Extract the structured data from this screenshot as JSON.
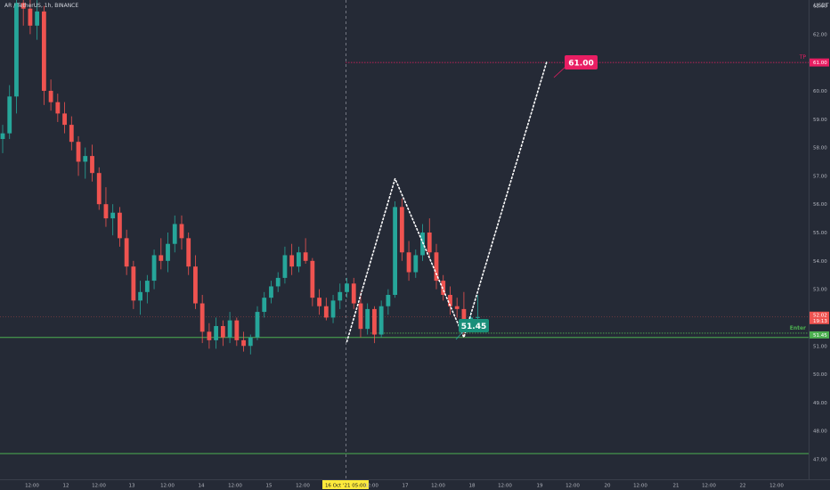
{
  "header": {
    "title": "AR / TetherUS, 1h, BINANCE",
    "currency": "USDT"
  },
  "chart_data": {
    "type": "candlestick",
    "title": "AR / TetherUS, 1h, BINANCE",
    "ylim": [
      46.6,
      63.6
    ],
    "y_ticks": [
      "47.00",
      "48.00",
      "49.00",
      "50.00",
      "51.00",
      "52.00",
      "53.00",
      "54.00",
      "55.00",
      "56.00",
      "57.00",
      "58.00",
      "59.00",
      "60.00",
      "61.00",
      "62.00",
      "63.00"
    ],
    "x_ticks": [
      "12:00",
      "12",
      "12:00",
      "13",
      "12:00",
      "14",
      "12:00",
      "15",
      "12:00",
      "16 Oct '21 05:00",
      "12:00",
      "17",
      "12:00",
      "18",
      "12:00",
      "19",
      "12:00",
      "20",
      "12:00",
      "21",
      "12:00",
      "22",
      "12:00"
    ],
    "colors": {
      "up": "#26a69a",
      "down": "#ef5350",
      "projection": "#ffffff",
      "tp": "#e91e63",
      "enter": "#4caf50",
      "support": "#4caf50"
    },
    "candles": [
      [
        58.3,
        58.8,
        57.8,
        58.5
      ],
      [
        58.5,
        60.2,
        58.3,
        59.8
      ],
      [
        59.8,
        63.6,
        59.2,
        63.1
      ],
      [
        63.1,
        63.5,
        62.3,
        62.9
      ],
      [
        62.9,
        63.4,
        62.0,
        62.3
      ],
      [
        62.3,
        63.2,
        61.8,
        62.8
      ],
      [
        62.8,
        63.0,
        59.5,
        60.0
      ],
      [
        60.0,
        60.4,
        59.3,
        59.6
      ],
      [
        59.6,
        59.9,
        58.9,
        59.2
      ],
      [
        59.2,
        59.6,
        58.5,
        58.8
      ],
      [
        58.8,
        59.1,
        57.9,
        58.2
      ],
      [
        58.2,
        58.4,
        57.0,
        57.5
      ],
      [
        57.5,
        58.0,
        56.9,
        57.7
      ],
      [
        57.7,
        58.1,
        56.8,
        57.1
      ],
      [
        57.1,
        57.3,
        55.8,
        56.0
      ],
      [
        56.0,
        56.6,
        55.2,
        55.5
      ],
      [
        55.5,
        56.0,
        54.9,
        55.7
      ],
      [
        55.7,
        55.9,
        54.5,
        54.8
      ],
      [
        54.8,
        55.1,
        53.5,
        53.8
      ],
      [
        53.8,
        54.0,
        52.3,
        52.6
      ],
      [
        52.6,
        53.3,
        52.1,
        52.9
      ],
      [
        52.9,
        53.5,
        52.5,
        53.3
      ],
      [
        53.3,
        54.4,
        53.0,
        54.2
      ],
      [
        54.2,
        54.8,
        53.7,
        54.0
      ],
      [
        54.0,
        55.0,
        53.6,
        54.6
      ],
      [
        54.6,
        55.6,
        54.3,
        55.3
      ],
      [
        55.3,
        55.6,
        54.4,
        54.8
      ],
      [
        54.8,
        55.0,
        53.5,
        53.8
      ],
      [
        53.8,
        54.2,
        52.3,
        52.5
      ],
      [
        52.5,
        52.8,
        51.1,
        51.5
      ],
      [
        51.5,
        51.8,
        50.9,
        51.2
      ],
      [
        51.2,
        52.0,
        50.9,
        51.7
      ],
      [
        51.7,
        51.9,
        51.0,
        51.3
      ],
      [
        51.3,
        52.2,
        51.1,
        51.9
      ],
      [
        51.9,
        52.0,
        51.0,
        51.2
      ],
      [
        51.2,
        51.5,
        50.8,
        51.0
      ],
      [
        51.0,
        51.4,
        50.7,
        51.3
      ],
      [
        51.3,
        52.4,
        51.2,
        52.2
      ],
      [
        52.2,
        52.9,
        52.0,
        52.7
      ],
      [
        52.7,
        53.3,
        52.5,
        53.1
      ],
      [
        53.1,
        53.6,
        52.9,
        53.4
      ],
      [
        53.4,
        54.5,
        53.2,
        54.2
      ],
      [
        54.2,
        54.6,
        53.5,
        53.8
      ],
      [
        53.8,
        54.5,
        53.6,
        54.3
      ],
      [
        54.3,
        54.8,
        53.9,
        54.0
      ],
      [
        54.0,
        54.1,
        52.4,
        52.7
      ],
      [
        52.7,
        53.0,
        52.1,
        52.4
      ],
      [
        52.4,
        52.7,
        51.9,
        52.0
      ],
      [
        52.0,
        52.8,
        51.8,
        52.6
      ],
      [
        52.6,
        53.2,
        52.3,
        52.9
      ],
      [
        52.9,
        53.4,
        52.7,
        53.2
      ],
      [
        53.2,
        53.4,
        52.3,
        52.5
      ],
      [
        52.5,
        52.9,
        51.3,
        51.6
      ],
      [
        51.6,
        52.5,
        51.4,
        52.3
      ],
      [
        52.3,
        52.4,
        51.1,
        51.4
      ],
      [
        51.4,
        52.6,
        51.3,
        52.4
      ],
      [
        52.4,
        53.0,
        52.1,
        52.8
      ],
      [
        52.8,
        56.1,
        52.7,
        55.9
      ],
      [
        55.9,
        56.2,
        54.0,
        54.3
      ],
      [
        54.3,
        54.7,
        53.3,
        53.6
      ],
      [
        53.6,
        54.4,
        53.4,
        54.2
      ],
      [
        54.2,
        55.3,
        54.0,
        55.0
      ],
      [
        55.0,
        55.5,
        54.1,
        54.3
      ],
      [
        54.3,
        54.6,
        53.0,
        53.3
      ],
      [
        53.3,
        53.5,
        52.6,
        52.8
      ],
      [
        52.8,
        53.1,
        52.1,
        52.4
      ],
      [
        52.4,
        52.7,
        52.0,
        52.3
      ],
      [
        52.3,
        52.9,
        51.3,
        51.6
      ],
      [
        51.6,
        52.2,
        51.5,
        52.0
      ],
      [
        52.0,
        52.8,
        51.9,
        52.02
      ]
    ],
    "projection_path": [
      [
        50,
        51.15
      ],
      [
        57,
        56.9
      ],
      [
        67,
        51.3
      ],
      [
        79,
        61.0
      ]
    ],
    "levels": {
      "current_price": {
        "label": "52.02",
        "sublabel": "19:13",
        "value": 52.02
      },
      "tp": {
        "label": "TP",
        "value": 61.0,
        "axis_label": "61.00"
      },
      "enter": {
        "label": "Enter",
        "value": 51.45,
        "axis_label": "51.45"
      },
      "support_1": {
        "value": 51.3
      },
      "support_2": {
        "value": 47.2
      }
    },
    "annotations": [
      {
        "text": "61.00",
        "value": 61.0
      },
      {
        "text": "51.45",
        "value": 51.45
      }
    ]
  }
}
